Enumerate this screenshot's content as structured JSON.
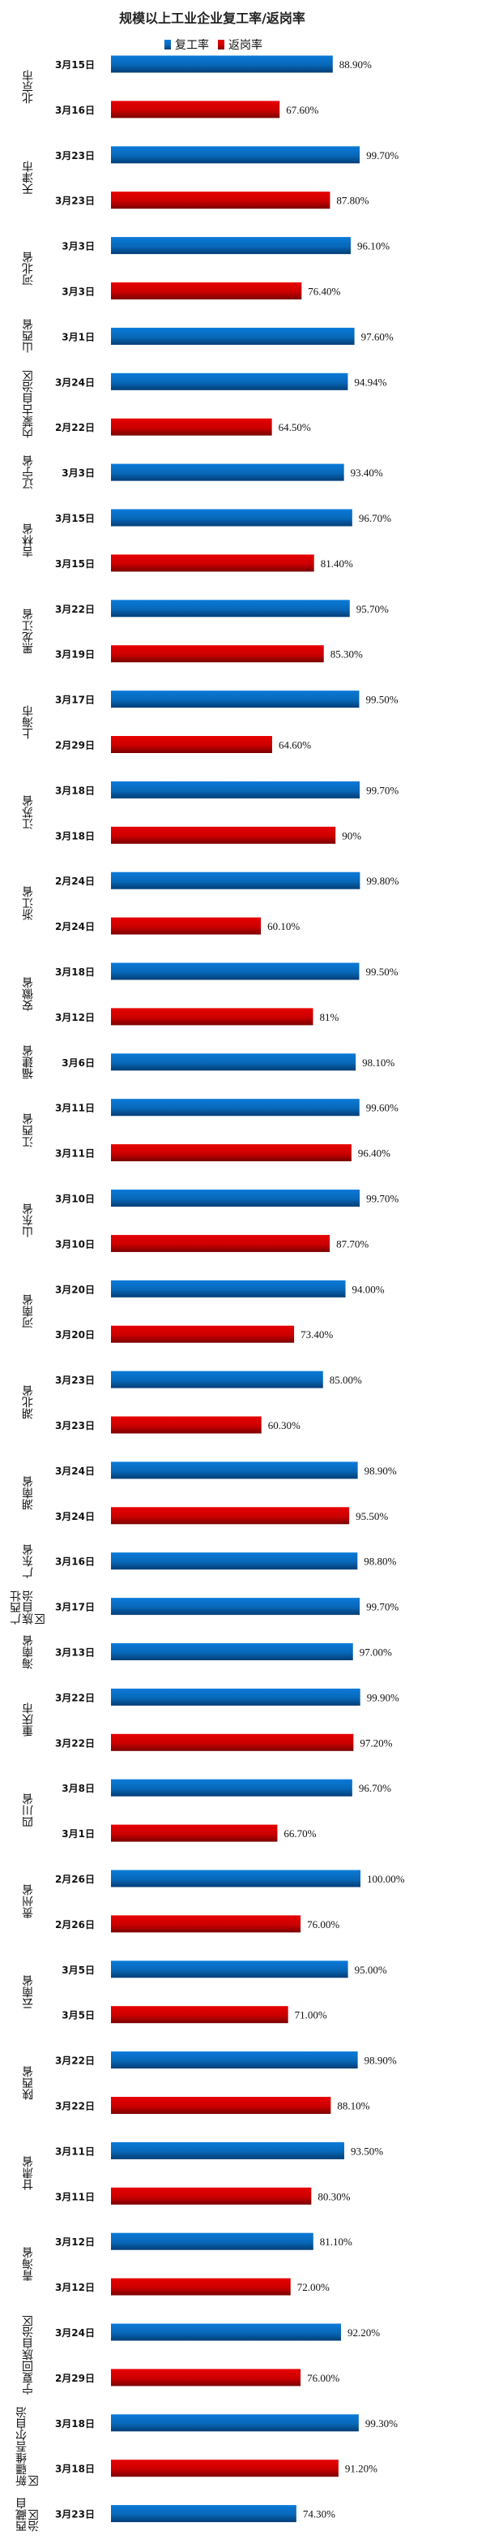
{
  "chart_data": {
    "type": "bar",
    "orientation": "horizontal",
    "title": "规模以上工业企业复工率/返岗率",
    "xlim": [
      0,
      100
    ],
    "grid": false,
    "legend_position": "top",
    "series": [
      {
        "name": "复工率",
        "color": "#0a72c8"
      },
      {
        "name": "返岗率",
        "color": "#d80000"
      }
    ],
    "groups": [
      {
        "category": "北京市",
        "bars": [
          {
            "series": 0,
            "date": "3月15日",
            "value": 88.9,
            "label": "88.90%"
          },
          {
            "series": 1,
            "date": "3月16日",
            "value": 67.6,
            "label": "67.60%"
          }
        ]
      },
      {
        "category": "天津市",
        "bars": [
          {
            "series": 0,
            "date": "3月23日",
            "value": 99.7,
            "label": "99.70%"
          },
          {
            "series": 1,
            "date": "3月23日",
            "value": 87.8,
            "label": "87.80%"
          }
        ]
      },
      {
        "category": "河北省",
        "bars": [
          {
            "series": 0,
            "date": "3月3日",
            "value": 96.1,
            "label": "96.10%"
          },
          {
            "series": 1,
            "date": "3月3日",
            "value": 76.4,
            "label": "76.40%"
          }
        ]
      },
      {
        "category": "山西省",
        "bars": [
          {
            "series": 0,
            "date": "3月1日",
            "value": 97.6,
            "label": "97.60%"
          }
        ]
      },
      {
        "category": "内蒙古自治区",
        "bars": [
          {
            "series": 0,
            "date": "3月24日",
            "value": 94.94,
            "label": "94.94%"
          },
          {
            "series": 1,
            "date": "2月22日",
            "value": 64.5,
            "label": "64.50%"
          }
        ]
      },
      {
        "category": "辽宁省",
        "bars": [
          {
            "series": 0,
            "date": "3月3日",
            "value": 93.4,
            "label": "93.40%"
          }
        ]
      },
      {
        "category": "吉林省",
        "bars": [
          {
            "series": 0,
            "date": "3月15日",
            "value": 96.7,
            "label": "96.70%"
          },
          {
            "series": 1,
            "date": "3月15日",
            "value": 81.4,
            "label": "81.40%"
          }
        ]
      },
      {
        "category": "黑龙江省",
        "bars": [
          {
            "series": 0,
            "date": "3月22日",
            "value": 95.7,
            "label": "95.70%"
          },
          {
            "series": 1,
            "date": "3月19日",
            "value": 85.3,
            "label": "85.30%"
          }
        ]
      },
      {
        "category": "上海市",
        "bars": [
          {
            "series": 0,
            "date": "3月17日",
            "value": 99.5,
            "label": "99.50%"
          },
          {
            "series": 1,
            "date": "2月29日",
            "value": 64.6,
            "label": "64.60%"
          }
        ]
      },
      {
        "category": "江苏省",
        "bars": [
          {
            "series": 0,
            "date": "3月18日",
            "value": 99.7,
            "label": "99.70%"
          },
          {
            "series": 1,
            "date": "3月18日",
            "value": 90,
            "label": "90%"
          }
        ]
      },
      {
        "category": "浙江省",
        "bars": [
          {
            "series": 0,
            "date": "2月24日",
            "value": 99.8,
            "label": "99.80%"
          },
          {
            "series": 1,
            "date": "2月24日",
            "value": 60.1,
            "label": "60.10%"
          }
        ]
      },
      {
        "category": "安徽省",
        "bars": [
          {
            "series": 0,
            "date": "3月18日",
            "value": 99.5,
            "label": "99.50%"
          },
          {
            "series": 1,
            "date": "3月12日",
            "value": 81,
            "label": "81%"
          }
        ]
      },
      {
        "category": "福建省",
        "bars": [
          {
            "series": 0,
            "date": "3月6日",
            "value": 98.1,
            "label": "98.10%"
          }
        ]
      },
      {
        "category": "江西省",
        "bars": [
          {
            "series": 0,
            "date": "3月11日",
            "value": 99.6,
            "label": "99.60%"
          },
          {
            "series": 1,
            "date": "3月11日",
            "value": 96.4,
            "label": "96.40%"
          }
        ]
      },
      {
        "category": "山东省",
        "bars": [
          {
            "series": 0,
            "date": "3月10日",
            "value": 99.7,
            "label": "99.70%"
          },
          {
            "series": 1,
            "date": "3月10日",
            "value": 87.7,
            "label": "87.70%"
          }
        ]
      },
      {
        "category": "河南省",
        "bars": [
          {
            "series": 0,
            "date": "3月20日",
            "value": 94.0,
            "label": "94.00%"
          },
          {
            "series": 1,
            "date": "3月20日",
            "value": 73.4,
            "label": "73.40%"
          }
        ]
      },
      {
        "category": "湖北省",
        "bars": [
          {
            "series": 0,
            "date": "3月23日",
            "value": 85.0,
            "label": "85.00%"
          },
          {
            "series": 1,
            "date": "3月23日",
            "value": 60.3,
            "label": "60.30%"
          }
        ]
      },
      {
        "category": "湖南省",
        "bars": [
          {
            "series": 0,
            "date": "3月24日",
            "value": 98.9,
            "label": "98.90%"
          },
          {
            "series": 1,
            "date": "3月24日",
            "value": 95.5,
            "label": "95.50%"
          }
        ]
      },
      {
        "category": "广东省",
        "bars": [
          {
            "series": 0,
            "date": "3月16日",
            "value": 98.8,
            "label": "98.80%"
          }
        ]
      },
      {
        "category": "广西壮族自治区",
        "bars": [
          {
            "series": 0,
            "date": "3月17日",
            "value": 99.7,
            "label": "99.70%"
          }
        ]
      },
      {
        "category": "海南省",
        "bars": [
          {
            "series": 0,
            "date": "3月13日",
            "value": 97.0,
            "label": "97.00%"
          }
        ]
      },
      {
        "category": "重庆市",
        "bars": [
          {
            "series": 0,
            "date": "3月22日",
            "value": 99.9,
            "label": "99.90%"
          },
          {
            "series": 1,
            "date": "3月22日",
            "value": 97.2,
            "label": "97.20%"
          }
        ]
      },
      {
        "category": "四川省",
        "bars": [
          {
            "series": 0,
            "date": "3月8日",
            "value": 96.7,
            "label": "96.70%"
          },
          {
            "series": 1,
            "date": "3月1日",
            "value": 66.7,
            "label": "66.70%"
          }
        ]
      },
      {
        "category": "贵州省",
        "bars": [
          {
            "series": 0,
            "date": "2月26日",
            "value": 100.0,
            "label": "100.00%"
          },
          {
            "series": 1,
            "date": "2月26日",
            "value": 76.0,
            "label": "76.00%"
          }
        ]
      },
      {
        "category": "云南省",
        "bars": [
          {
            "series": 0,
            "date": "3月5日",
            "value": 95.0,
            "label": "95.00%"
          },
          {
            "series": 1,
            "date": "3月5日",
            "value": 71.0,
            "label": "71.00%"
          }
        ]
      },
      {
        "category": "陕西省",
        "bars": [
          {
            "series": 0,
            "date": "3月22日",
            "value": 98.9,
            "label": "98.90%"
          },
          {
            "series": 1,
            "date": "3月22日",
            "value": 88.1,
            "label": "88.10%"
          }
        ]
      },
      {
        "category": "甘肃省",
        "bars": [
          {
            "series": 0,
            "date": "3月11日",
            "value": 93.5,
            "label": "93.50%"
          },
          {
            "series": 1,
            "date": "3月11日",
            "value": 80.3,
            "label": "80.30%"
          }
        ]
      },
      {
        "category": "青海省",
        "bars": [
          {
            "series": 0,
            "date": "3月12日",
            "value": 81.1,
            "label": "81.10%"
          },
          {
            "series": 1,
            "date": "3月12日",
            "value": 72.0,
            "label": "72.00%"
          }
        ]
      },
      {
        "category": "宁夏回族自治区",
        "bars": [
          {
            "series": 0,
            "date": "3月24日",
            "value": 92.2,
            "label": "92.20%"
          },
          {
            "series": 1,
            "date": "2月29日",
            "value": 76.0,
            "label": "76.00%"
          }
        ]
      },
      {
        "category": "新疆维吾尔自治区",
        "bars": [
          {
            "series": 0,
            "date": "3月18日",
            "value": 99.3,
            "label": "99.30%"
          },
          {
            "series": 1,
            "date": "3月18日",
            "value": 91.2,
            "label": "91.20%"
          }
        ]
      },
      {
        "category": "西藏自治区",
        "bars": [
          {
            "series": 0,
            "date": "3月23日",
            "value": 74.3,
            "label": "74.30%"
          }
        ]
      }
    ]
  }
}
